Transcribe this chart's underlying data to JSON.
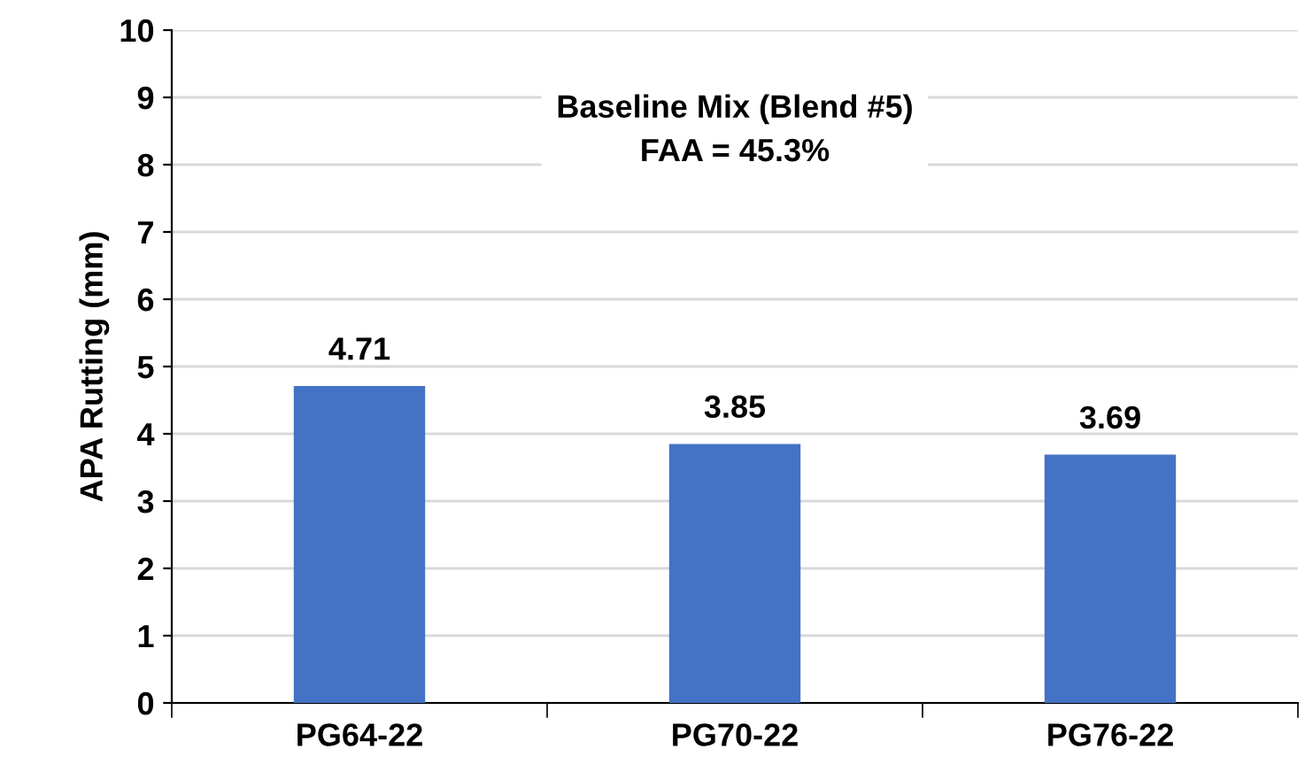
{
  "chart_data": {
    "type": "bar",
    "title": "Baseline Mix (Blend #5)\nFAA = 45.3%",
    "ylabel": "APA Rutting (mm)",
    "categories": [
      "PG64-22",
      "PG70-22",
      "PG76-22"
    ],
    "values": [
      4.71,
      3.85,
      3.69
    ],
    "color": "#4472c4",
    "ylim": [
      0,
      10
    ],
    "yticks": [
      0,
      1,
      2,
      3,
      4,
      5,
      6,
      7,
      8,
      9,
      10
    ],
    "grid": "y",
    "data_labels": true
  }
}
